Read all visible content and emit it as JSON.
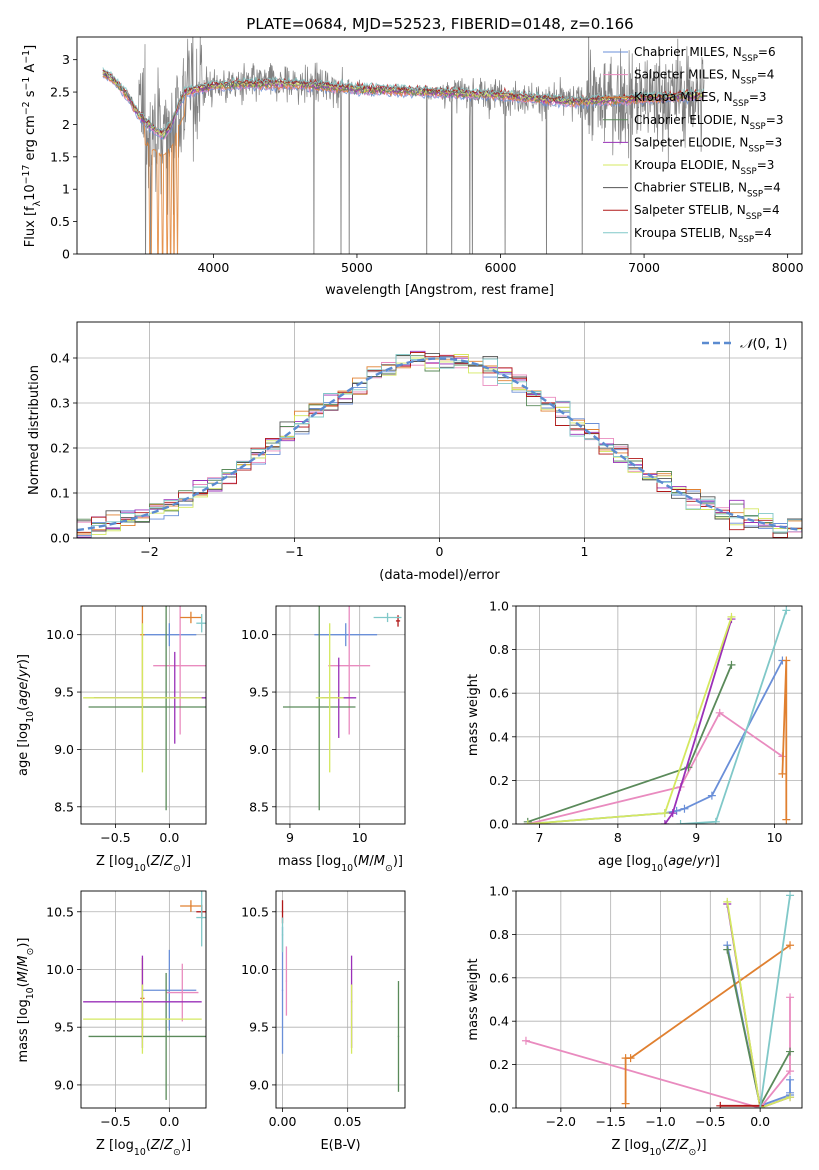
{
  "title": "PLATE=0684, MJD=52523, FIBERID=0148, z=0.166",
  "colors": {
    "chabrier_miles": "#6a8fd8",
    "salpeter_miles": "#e98bbf",
    "kroupa_miles": "#e08030",
    "chabrier_elodie": "#5a8a5a",
    "salpeter_elodie": "#9a30b8",
    "kroupa_elodie": "#d4e860",
    "chabrier_stelib": "#555555",
    "salpeter_stelib": "#b01818",
    "kroupa_stelib": "#80c8c8",
    "data": "#808080",
    "normal": "#5b8bd0"
  },
  "chart_data": [
    {
      "type": "line",
      "id": "spectrum",
      "xlabel": "wavelength [Angstrom, rest frame]",
      "ylabel": "Flux [f_λ 10^-17 erg cm^-2 s^-1 A^-1]",
      "xlim": [
        3050,
        8100
      ],
      "ylim": [
        0,
        3.35
      ],
      "xticks": [
        4000,
        5000,
        6000,
        7000,
        8000
      ],
      "yticks": [
        0.0,
        0.5,
        1.0,
        1.5,
        2.0,
        2.5,
        3.0
      ],
      "grid": false,
      "legend_position": "top-right",
      "legend": [
        {
          "label": "Chabrier MILES, N_SSP=6",
          "color_key": "chabrier_miles"
        },
        {
          "label": "Salpeter MILES, N_SSP=4",
          "color_key": "salpeter_miles"
        },
        {
          "label": "Kroupa MILES, N_SSP=3",
          "color_key": "kroupa_miles"
        },
        {
          "label": "Chabrier ELODIE, N_SSP=3",
          "color_key": "chabrier_elodie"
        },
        {
          "label": "Salpeter ELODIE, N_SSP=3",
          "color_key": "salpeter_elodie"
        },
        {
          "label": "Kroupa ELODIE, N_SSP=3",
          "color_key": "kroupa_elodie"
        },
        {
          "label": "Chabrier STELIB, N_SSP=4",
          "color_key": "chabrier_stelib"
        },
        {
          "label": "Salpeter STELIB, N_SSP=4",
          "color_key": "salpeter_stelib"
        },
        {
          "label": "Kroupa STELIB, N_SSP=4",
          "color_key": "kroupa_stelib"
        }
      ],
      "continuum": {
        "x": [
          3230,
          3300,
          3400,
          3450,
          3500,
          3550,
          3600,
          3650,
          3700,
          3750,
          3800,
          3900,
          4000,
          4200,
          4500,
          5000,
          5500,
          6000,
          6500,
          7000,
          7400
        ],
        "y": [
          2.8,
          2.7,
          2.45,
          2.25,
          2.1,
          2.0,
          1.9,
          1.85,
          1.95,
          2.25,
          2.5,
          2.55,
          2.6,
          2.62,
          2.63,
          2.55,
          2.5,
          2.45,
          2.35,
          2.4,
          2.45
        ]
      }
    },
    {
      "type": "bar",
      "id": "residuals",
      "xlabel": "(data-model)/error",
      "ylabel": "Normed distribution",
      "xlim": [
        -2.5,
        2.5
      ],
      "ylim": [
        0,
        0.48
      ],
      "xticks": [
        -2,
        -1,
        0,
        1,
        2
      ],
      "yticks": [
        0.0,
        0.1,
        0.2,
        0.3,
        0.4
      ],
      "grid": true,
      "legend_position": "top-right",
      "normal_label": "N(0, 1)",
      "bin_width": 0.1
    },
    {
      "type": "scatter",
      "id": "z-age",
      "xlabel": "Z [log10(Z/Z⊙)]",
      "ylabel": "age  [log10(age/yr)]",
      "xlim": [
        -0.82,
        0.34
      ],
      "ylim": [
        8.35,
        10.25
      ],
      "xticks": [
        -0.5,
        0.0
      ],
      "yticks": [
        8.5,
        9.0,
        9.5,
        10.0
      ],
      "grid": true,
      "crosses": [
        {
          "color_key": "chabrier_miles",
          "x": 0.0,
          "y": 10.0,
          "xerr": 0.25,
          "yerr": 0.1
        },
        {
          "color_key": "salpeter_miles",
          "x": 0.1,
          "y": 9.73,
          "xerr": 0.25,
          "yerr": 0.6
        },
        {
          "color_key": "kroupa_miles",
          "x": -0.25,
          "y": 10.0,
          "xerr": 0.02,
          "yerr": 1.0
        },
        {
          "color_key": "chabrier_elodie",
          "x": -0.03,
          "y": 9.37,
          "xerr": 0.72,
          "yerr": 0.9
        },
        {
          "color_key": "salpeter_elodie",
          "x": 0.05,
          "y": 9.45,
          "xerr": 0.75,
          "yerr": 0.4
        },
        {
          "color_key": "kroupa_elodie",
          "x": -0.25,
          "y": 9.45,
          "xerr": 0.55,
          "yerr": 0.65
        },
        {
          "color_key": "kroupa_miles",
          "x": 0.2,
          "y": 10.15,
          "xerr": 0.1,
          "yerr": 0.05
        },
        {
          "color_key": "kroupa_stelib",
          "x": 0.3,
          "y": 10.1,
          "xerr": 0.05,
          "yerr": 0.08
        }
      ]
    },
    {
      "type": "scatter",
      "id": "mass-age",
      "xlabel": "mass [log10(M/M⊙)]",
      "ylabel": "",
      "xlim": [
        8.8,
        10.65
      ],
      "ylim": [
        8.35,
        10.25
      ],
      "xticks": [
        9,
        10
      ],
      "yticks": [
        8.5,
        9.0,
        9.5,
        10.0
      ],
      "grid": true,
      "crosses": [
        {
          "color_key": "chabrier_miles",
          "x": 9.8,
          "y": 10.0,
          "xerr": 0.45,
          "yerr": 0.1
        },
        {
          "color_key": "salpeter_miles",
          "x": 9.85,
          "y": 9.73,
          "xerr": 0.3,
          "yerr": 0.6
        },
        {
          "color_key": "chabrier_elodie",
          "x": 9.42,
          "y": 9.37,
          "xerr": 0.52,
          "yerr": 0.9
        },
        {
          "color_key": "salpeter_elodie",
          "x": 9.7,
          "y": 9.45,
          "xerr": 0.25,
          "yerr": 0.35
        },
        {
          "color_key": "kroupa_elodie",
          "x": 9.57,
          "y": 9.45,
          "xerr": 0.2,
          "yerr": 0.65
        },
        {
          "color_key": "salpeter_stelib",
          "x": 10.55,
          "y": 10.12,
          "xerr": 0.03,
          "yerr": 0.05
        },
        {
          "color_key": "kroupa_stelib",
          "x": 10.4,
          "y": 10.15,
          "xerr": 0.2,
          "yerr": 0.04
        }
      ]
    },
    {
      "type": "line",
      "id": "age-massweight",
      "xlabel": "age  [log10(age/yr)]",
      "ylabel": "mass weight",
      "xlim": [
        6.7,
        10.35
      ],
      "ylim": [
        0,
        1.0
      ],
      "xticks": [
        7,
        8,
        9,
        10
      ],
      "yticks": [
        0.0,
        0.2,
        0.4,
        0.6,
        0.8,
        1.0
      ],
      "grid": true,
      "series": [
        {
          "color_key": "chabrier_miles",
          "x": [
            6.85,
            8.6,
            8.75,
            8.85,
            9.2,
            10.1
          ],
          "y": [
            0.0,
            0.05,
            0.06,
            0.07,
            0.13,
            0.75
          ]
        },
        {
          "color_key": "salpeter_miles",
          "x": [
            6.85,
            8.8,
            9.3,
            10.1
          ],
          "y": [
            0.0,
            0.17,
            0.51,
            0.31
          ]
        },
        {
          "color_key": "kroupa_miles",
          "x": [
            10.1,
            10.15,
            10.15
          ],
          "y": [
            0.23,
            0.75,
            0.02
          ]
        },
        {
          "color_key": "chabrier_elodie",
          "x": [
            6.85,
            8.9,
            9.45
          ],
          "y": [
            0.01,
            0.26,
            0.73
          ]
        },
        {
          "color_key": "salpeter_elodie",
          "x": [
            8.6,
            8.7,
            9.45
          ],
          "y": [
            0.0,
            0.05,
            0.94
          ]
        },
        {
          "color_key": "kroupa_elodie",
          "x": [
            6.85,
            8.6,
            9.45
          ],
          "y": [
            0.0,
            0.05,
            0.95
          ]
        },
        {
          "color_key": "kroupa_stelib",
          "x": [
            8.8,
            9.25,
            10.15
          ],
          "y": [
            0.0,
            0.01,
            0.98
          ]
        }
      ]
    },
    {
      "type": "scatter",
      "id": "z-mass",
      "xlabel": "Z [log10(Z/Z⊙)]",
      "ylabel": "mass [log10(M/M⊙)]",
      "xlim": [
        -0.82,
        0.34
      ],
      "ylim": [
        8.8,
        10.68
      ],
      "xticks": [
        -0.5,
        0.0
      ],
      "yticks": [
        9.0,
        9.5,
        10.0,
        10.5
      ],
      "grid": true,
      "crosses": [
        {
          "color_key": "chabrier_miles",
          "x": 0.0,
          "y": 9.82,
          "xerr": 0.25,
          "yerr": 0.35
        },
        {
          "color_key": "salpeter_miles",
          "x": 0.12,
          "y": 9.8,
          "xerr": 0.15,
          "yerr": 0.25
        },
        {
          "color_key": "kroupa_miles",
          "x": -0.25,
          "y": 9.75,
          "xerr": 0.02,
          "yerr": 0.35
        },
        {
          "color_key": "chabrier_elodie",
          "x": -0.03,
          "y": 9.42,
          "xerr": 0.72,
          "yerr": 0.55
        },
        {
          "color_key": "salpeter_elodie",
          "x": -0.25,
          "y": 9.72,
          "xerr": 0.55,
          "yerr": 0.4
        },
        {
          "color_key": "kroupa_elodie",
          "x": -0.25,
          "y": 9.57,
          "xerr": 0.55,
          "yerr": 0.3
        },
        {
          "color_key": "kroupa_miles",
          "x": 0.2,
          "y": 10.55,
          "xerr": 0.1,
          "yerr": 0.05
        },
        {
          "color_key": "salpeter_stelib",
          "x": 0.3,
          "y": 10.5,
          "xerr": 0.05,
          "yerr": 0.06
        },
        {
          "color_key": "kroupa_stelib",
          "x": 0.3,
          "y": 10.45,
          "xerr": 0.05,
          "yerr": 0.25
        }
      ]
    },
    {
      "type": "scatter",
      "id": "ebv-mass",
      "xlabel": "E(B-V)",
      "ylabel": "",
      "xlim": [
        -0.005,
        0.094
      ],
      "ylim": [
        8.8,
        10.68
      ],
      "xticks": [
        0.0,
        0.05
      ],
      "yticks": [
        9.0,
        9.5,
        10.0,
        10.5
      ],
      "grid": true,
      "crosses": [
        {
          "color_key": "chabrier_miles",
          "x": 0.0,
          "y": 9.82,
          "xerr": 0.0005,
          "yerr": 0.55
        },
        {
          "color_key": "salpeter_miles",
          "x": 0.003,
          "y": 9.9,
          "xerr": 0.0005,
          "yerr": 0.3
        },
        {
          "color_key": "salpeter_stelib",
          "x": 0.0,
          "y": 10.5,
          "xerr": 0.0005,
          "yerr": 0.1
        },
        {
          "color_key": "kroupa_stelib",
          "x": 0.0,
          "y": 10.3,
          "xerr": 0.0005,
          "yerr": 0.15
        },
        {
          "color_key": "salpeter_elodie",
          "x": 0.053,
          "y": 9.72,
          "xerr": 0.0005,
          "yerr": 0.4
        },
        {
          "color_key": "kroupa_elodie",
          "x": 0.053,
          "y": 9.57,
          "xerr": 0.0005,
          "yerr": 0.3
        },
        {
          "color_key": "chabrier_elodie",
          "x": 0.089,
          "y": 9.42,
          "xerr": 0.0005,
          "yerr": 0.48
        }
      ]
    },
    {
      "type": "line",
      "id": "z-massweight",
      "xlabel": "Z [log10(Z/Z⊙)]",
      "ylabel": "mass weight",
      "xlim": [
        -2.45,
        0.42
      ],
      "ylim": [
        0,
        1.0
      ],
      "xticks": [
        -2.0,
        -1.5,
        -1.0,
        -0.5,
        0.0
      ],
      "yticks": [
        0.0,
        0.2,
        0.4,
        0.6,
        0.8,
        1.0
      ],
      "grid": true,
      "series": [
        {
          "color_key": "chabrier_miles",
          "x": [
            -0.33,
            0.0,
            0.3,
            0.3,
            0.3
          ],
          "y": [
            0.75,
            0.01,
            0.06,
            0.07,
            0.13
          ]
        },
        {
          "color_key": "salpeter_miles",
          "x": [
            -2.35,
            0.0,
            0.3,
            0.3
          ],
          "y": [
            0.31,
            0.0,
            0.17,
            0.51
          ]
        },
        {
          "color_key": "kroupa_miles",
          "x": [
            -1.35,
            -1.35,
            -1.3,
            0.3
          ],
          "y": [
            0.02,
            0.23,
            0.23,
            0.75
          ]
        },
        {
          "color_key": "chabrier_elodie",
          "x": [
            -0.33,
            0.0,
            0.3
          ],
          "y": [
            0.73,
            0.01,
            0.26
          ]
        },
        {
          "color_key": "salpeter_elodie",
          "x": [
            -0.33,
            0.0,
            0.3
          ],
          "y": [
            0.94,
            0.0,
            0.05
          ]
        },
        {
          "color_key": "kroupa_elodie",
          "x": [
            -0.33,
            0.0,
            0.3
          ],
          "y": [
            0.95,
            0.0,
            0.05
          ]
        },
        {
          "color_key": "salpeter_stelib",
          "x": [
            -0.4,
            0.0
          ],
          "y": [
            0.01,
            0.01
          ]
        },
        {
          "color_key": "kroupa_stelib",
          "x": [
            0.0,
            0.3
          ],
          "y": [
            0.0,
            0.98
          ]
        }
      ]
    }
  ]
}
